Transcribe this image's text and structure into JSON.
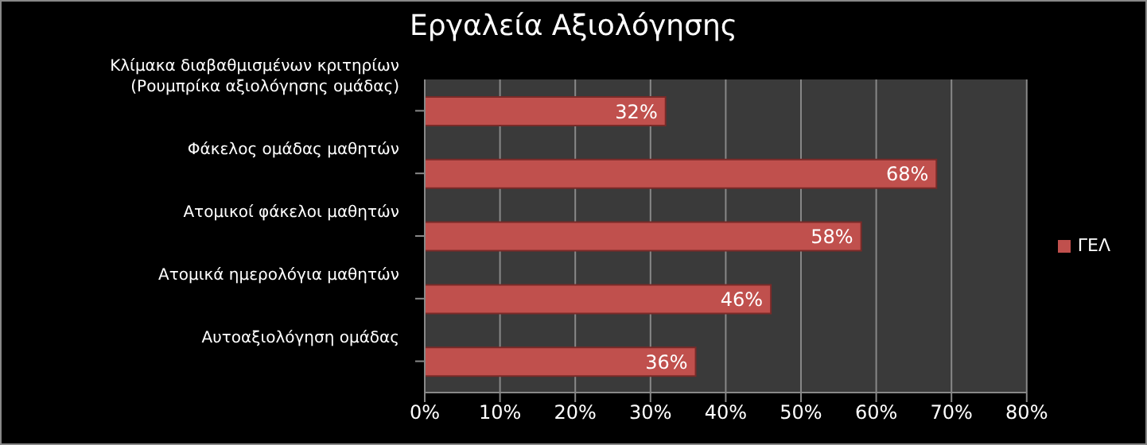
{
  "chart_data": {
    "type": "bar",
    "orientation": "horizontal",
    "title": "Εργαλεία Αξιολόγησης",
    "categories": [
      "Κλίμακα διαβαθμισμένων κριτηρίων (Ρουμπρίκα αξιολόγησης ομάδας)",
      "Φάκελος ομάδας μαθητών",
      "Ατομικοί φάκελοι μαθητών",
      "Ατομικά ημερολόγια μαθητών",
      "Αυτοαξιολόγηση ομάδας"
    ],
    "series": [
      {
        "name": "ΓΕΛ",
        "color": "#c0504d",
        "values": [
          32,
          68,
          58,
          46,
          36
        ],
        "value_labels": [
          "32%",
          "68%",
          "58%",
          "46%",
          "36%"
        ]
      }
    ],
    "xlim": [
      0,
      80
    ],
    "xticks": [
      {
        "value": 0,
        "label": "0%"
      },
      {
        "value": 10,
        "label": "10%"
      },
      {
        "value": 20,
        "label": "20%"
      },
      {
        "value": 30,
        "label": "30%"
      },
      {
        "value": 40,
        "label": "40%"
      },
      {
        "value": 50,
        "label": "50%"
      },
      {
        "value": 60,
        "label": "60%"
      },
      {
        "value": 70,
        "label": "70%"
      },
      {
        "value": 80,
        "label": "80%"
      }
    ],
    "grid": "x",
    "legend": "right"
  }
}
